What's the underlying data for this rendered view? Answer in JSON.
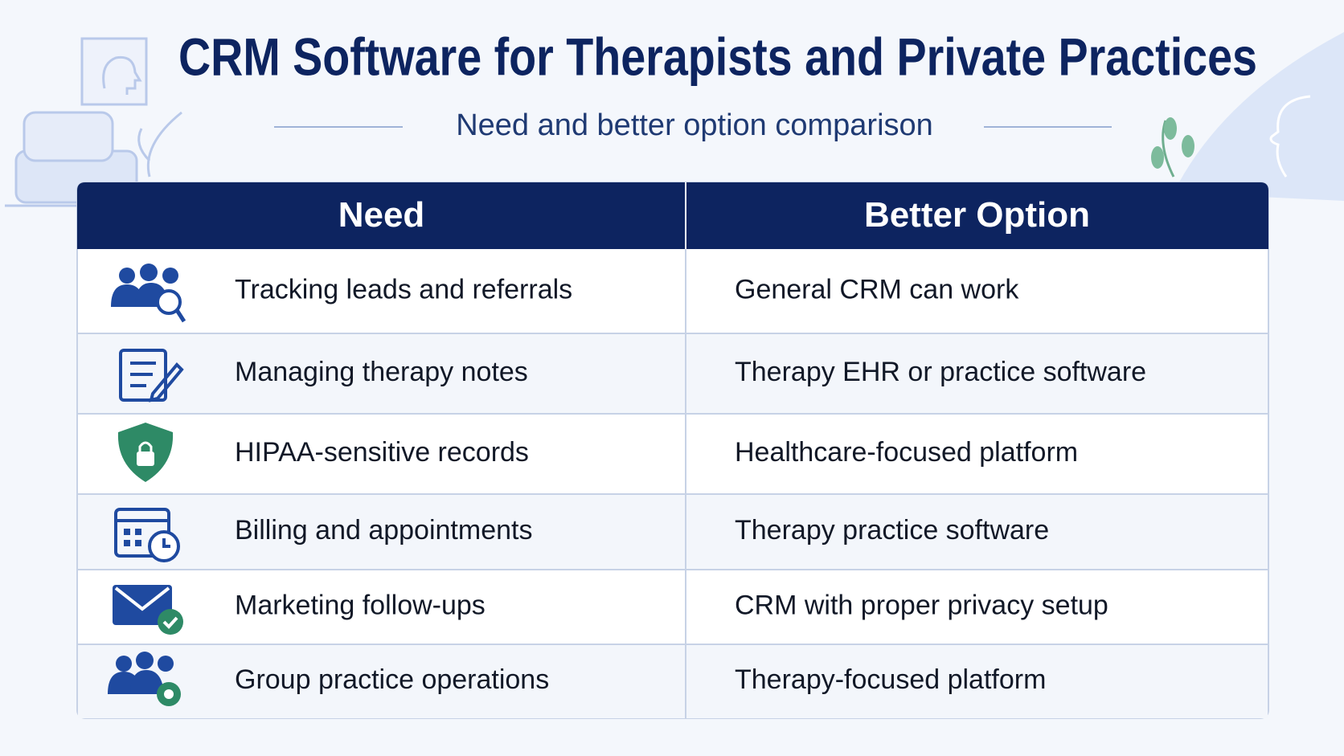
{
  "header": {
    "title": "CRM Software for Therapists and Private Practices",
    "subtitle": "Need and better option comparison"
  },
  "table": {
    "columns": [
      "Need",
      "Better Option"
    ],
    "rows": [
      [
        "Tracking leads and referrals",
        "General CRM can work"
      ],
      [
        "Managing therapy notes",
        "Therapy EHR or practice software"
      ],
      [
        "HIPAA-sensitive records",
        "Healthcare-focused platform"
      ],
      [
        "Billing and appointments",
        "Therapy practice software"
      ],
      [
        "Marketing follow-ups",
        "CRM with proper privacy setup"
      ],
      [
        "Group practice operations",
        "Therapy-focused platform"
      ]
    ]
  }
}
